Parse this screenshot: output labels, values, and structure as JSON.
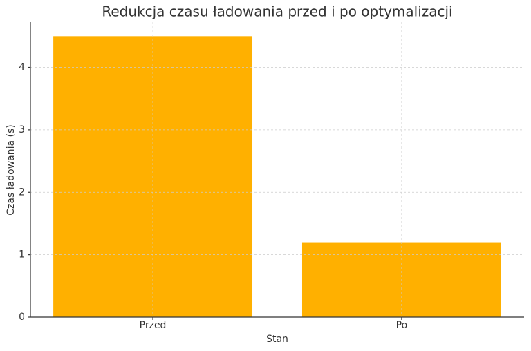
{
  "chart_data": {
    "type": "bar",
    "title": "Redukcja czasu ładowania przed i po optymalizacji",
    "x_label": "Stan",
    "y_label": "Czas ładowania (s)",
    "categories": [
      "Przed",
      "Po"
    ],
    "values": [
      4.5,
      1.2
    ],
    "color": "#ffb000",
    "ylim": [
      0,
      4.725
    ],
    "yticks": [
      0,
      1,
      2,
      3,
      4
    ],
    "grid": true
  }
}
